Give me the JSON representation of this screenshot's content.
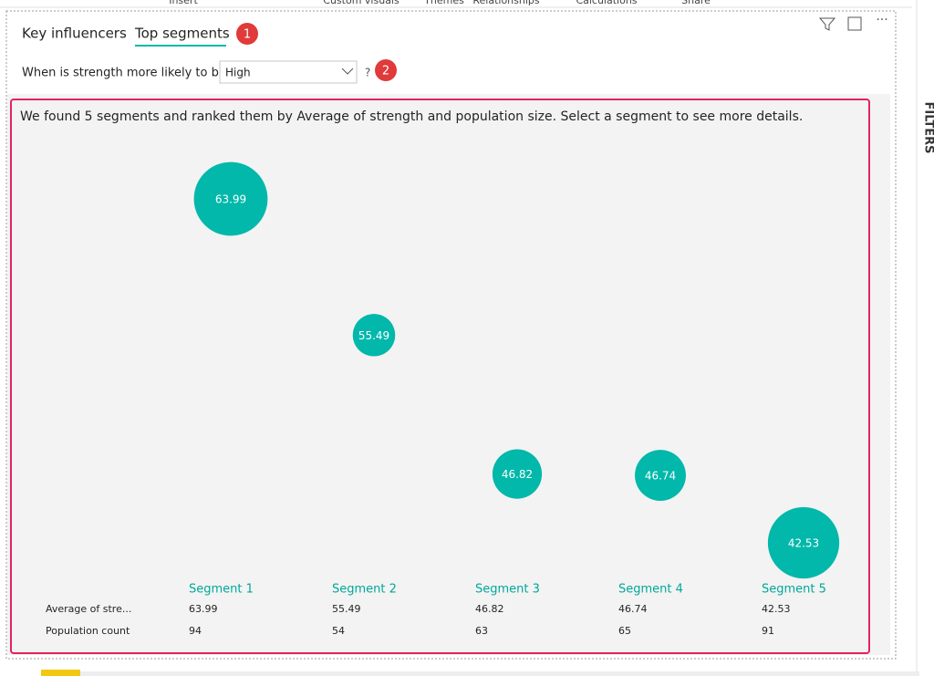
{
  "ribbon": [
    "Insert",
    "Custom visuals",
    "Themes",
    "Relationships",
    "Calculations",
    "Share"
  ],
  "tabs": [
    "Key influencers",
    "Top segments"
  ],
  "badges": [
    "1",
    "2"
  ],
  "condition": {
    "label": "When is strength more likely to be",
    "dropdown": "High",
    "help": "?"
  },
  "description": "We found 5 segments and ranked them by Average of strength and population size. Select a segment to see more details.",
  "row_labels": [
    "Average of stre...",
    "Population count"
  ],
  "segments": [
    {
      "name": "Segment 1",
      "average": 63.99,
      "population": 94
    },
    {
      "name": "Segment 2",
      "average": 55.49,
      "population": 54
    },
    {
      "name": "Segment 3",
      "average": 46.82,
      "population": 63
    },
    {
      "name": "Segment 4",
      "average": 46.74,
      "population": 65
    },
    {
      "name": "Segment 5",
      "average": 42.53,
      "population": 91
    }
  ],
  "side_pane": "FILTERS"
}
